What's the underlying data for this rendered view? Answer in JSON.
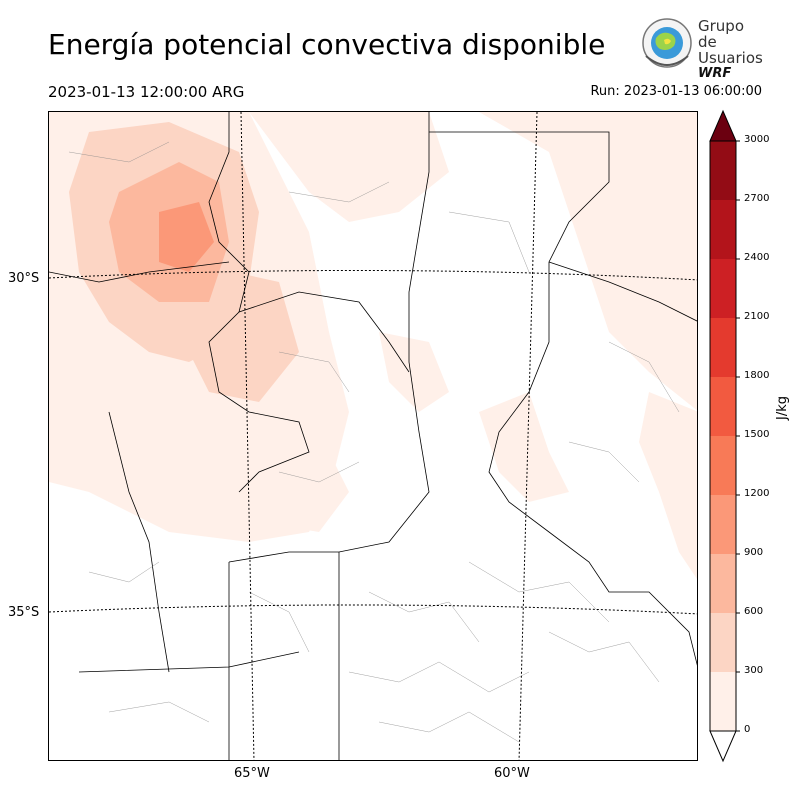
{
  "header": {
    "title": "Energía potencial convectiva disponible",
    "valid_time": "2023-01-13 12:00:00 ARG",
    "run_time": "Run: 2023-01-13 06:00:00"
  },
  "logo": {
    "line1": "Grupo de",
    "line2": "Usuarios",
    "line3": "WRF"
  },
  "map": {
    "lat_labels": [
      "30°S",
      "35°S"
    ],
    "lon_labels": [
      "65°W",
      "60°W"
    ]
  },
  "colorbar": {
    "unit": "J/kg",
    "ticks": [
      "0",
      "300",
      "600",
      "900",
      "1200",
      "1500",
      "1800",
      "2100",
      "2400",
      "2700",
      "3000"
    ],
    "colors": [
      "#fff0e9",
      "#fcd5c4",
      "#fcb89e",
      "#fb9878",
      "#f87a57",
      "#f25a40",
      "#e43a2e",
      "#cd2024",
      "#b3141b",
      "#930c15"
    ],
    "over_color": "#6b0010"
  },
  "field": {
    "variable": "CAPE",
    "colors": {
      "0": "#ffffff",
      "1": "#fff0e9",
      "2": "#fcd5c4",
      "3": "#fcb89e",
      "4": "#fb9878"
    }
  }
}
